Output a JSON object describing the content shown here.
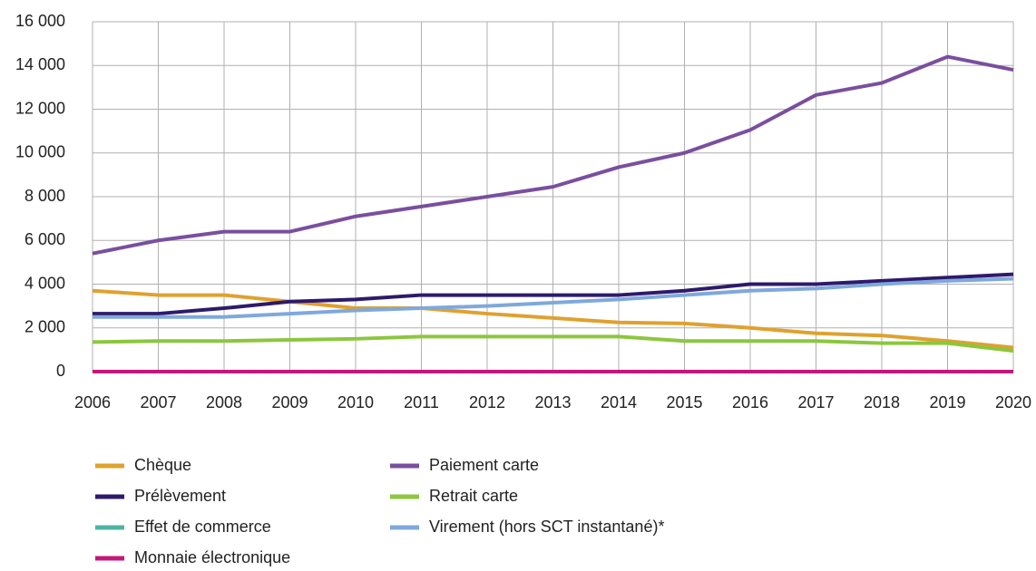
{
  "chart_data": {
    "type": "line",
    "x": [
      2006,
      2007,
      2008,
      2009,
      2010,
      2011,
      2012,
      2013,
      2014,
      2015,
      2016,
      2017,
      2018,
      2019,
      2020
    ],
    "xlim": [
      2006,
      2020
    ],
    "ylim": [
      0,
      16000
    ],
    "yticks": [
      0,
      {
        "value": 2000,
        "label": "2 000"
      },
      {
        "value": 4000,
        "label": "4 000"
      },
      {
        "value": 6000,
        "label": "6 000"
      },
      {
        "value": 8000,
        "label": "8 000"
      },
      {
        "value": 10000,
        "label": "10 000"
      },
      {
        "value": 12000,
        "label": "12 000"
      },
      {
        "value": 14000,
        "label": "14 000"
      },
      {
        "value": 16000,
        "label": "16 000"
      }
    ],
    "grid": true,
    "series": [
      {
        "name": "Chèque",
        "color": "#dfa12f",
        "values": [
          3700,
          3500,
          3500,
          3200,
          2900,
          2900,
          2650,
          2450,
          2250,
          2200,
          2000,
          1750,
          1650,
          1400,
          1100
        ]
      },
      {
        "name": "Paiement carte",
        "color": "#7a4f9e",
        "values": [
          5400,
          6000,
          6400,
          6400,
          7100,
          7550,
          8000,
          8450,
          9350,
          10000,
          11050,
          12650,
          13200,
          14400,
          13800
        ]
      },
      {
        "name": "Prélèvement",
        "color": "#2e1a6b",
        "values": [
          2650,
          2650,
          2900,
          3200,
          3300,
          3500,
          3500,
          3500,
          3500,
          3700,
          4000,
          4000,
          4150,
          4300,
          4450
        ]
      },
      {
        "name": "Retrait carte",
        "color": "#8cc63e",
        "values": [
          1350,
          1400,
          1400,
          1450,
          1500,
          1600,
          1600,
          1600,
          1600,
          1400,
          1400,
          1400,
          1300,
          1300,
          950
        ]
      },
      {
        "name": "Effet de commerce",
        "color": "#4fb3a3",
        "values": [
          0,
          0,
          0,
          0,
          0,
          0,
          0,
          0,
          0,
          0,
          0,
          0,
          0,
          0,
          0
        ]
      },
      {
        "name": "Virement (hors SCT instantané)*",
        "color": "#7fa8dc",
        "values": [
          2500,
          2500,
          2500,
          2650,
          2800,
          2900,
          3000,
          3150,
          3300,
          3500,
          3700,
          3800,
          4000,
          4150,
          4250
        ]
      },
      {
        "name": "Monnaie électronique",
        "color": "#c4177c",
        "values": [
          0,
          0,
          0,
          0,
          0,
          0,
          0,
          0,
          0,
          0,
          0,
          0,
          0,
          0,
          0
        ]
      }
    ]
  }
}
